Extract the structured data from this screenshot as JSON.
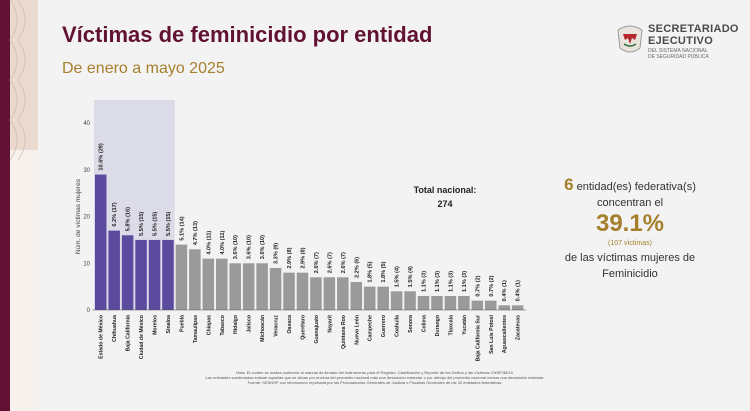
{
  "header": {
    "title": "Víctimas de feminicidio por entidad",
    "subtitle": "De enero a mayo 2025"
  },
  "logo": {
    "line1": "SECRETARIADO",
    "line2": "EJECUTIVO",
    "line3": "DEL SISTEMA NACIONAL",
    "line4": "DE SEGURIDAD PÚBLICA"
  },
  "total": {
    "label": "Total nacional:",
    "value": "274"
  },
  "summary": {
    "count": "6",
    "line1": "entidad(es) federativa(s)",
    "line2": "concentran el",
    "percent": "39.1%",
    "victims": "(107 víctimas)",
    "line3": "de las víctimas mujeres de",
    "line4": "Feminicidio"
  },
  "notes": {
    "line1": "Nota: El conteo se realiza conforme al manual de llenado del Instrumento para el Registro, Clasificación y Reporte de los Delitos y las Víctimas CNSP/38/15.",
    "line2": "Las entidades sombreadas indican aquellas que se sitúan por encima del promedio nacional más una desviación estándar o por debajo del promedio nacional menos una desviación estándar.",
    "line3": "Fuente: SESNSP con información reportada por las Procuradurías Generales de Justicia o Fiscalías Generales de las 32 entidades federativas."
  },
  "colors": {
    "highlight": "#5b4a9e",
    "normal": "#9a9a9a",
    "highlight_band": "#dcdbe8",
    "title": "#611232",
    "accent": "#a57f2c"
  },
  "chart_data": {
    "type": "bar",
    "ylabel": "Núm. de víctimas mujeres",
    "ylim": [
      0,
      40
    ],
    "yticks": [
      0,
      10,
      20,
      30,
      40
    ],
    "grid": false,
    "categories": [
      "Estado de México",
      "Chihuahua",
      "Baja California",
      "Ciudad de México",
      "Morelos",
      "Sinaloa",
      "Puebla",
      "Tamaulipas",
      "Chiapas",
      "Tabasco",
      "Hidalgo",
      "Jalisco",
      "Michoacán",
      "Veracruz",
      "Oaxaca",
      "Querétaro",
      "Guanajuato",
      "Nayarit",
      "Quintana Roo",
      "Nuevo León",
      "Campeche",
      "Guerrero",
      "Coahuila",
      "Sonora",
      "Colima",
      "Durango",
      "Tlaxcala",
      "Yucatán",
      "Baja California Sur",
      "San Luis Potosí",
      "Aguascalientes",
      "Zacatecas"
    ],
    "values": [
      29,
      17,
      16,
      15,
      15,
      15,
      14,
      13,
      11,
      11,
      10,
      10,
      10,
      9,
      8,
      8,
      7,
      7,
      7,
      6,
      5,
      5,
      4,
      4,
      3,
      3,
      3,
      3,
      2,
      2,
      1,
      1
    ],
    "labels": [
      "10.6% (29)",
      "6.2% (17)",
      "5.8% (16)",
      "5.5% (15)",
      "5.5% (15)",
      "5.5% (15)",
      "5.1% (14)",
      "4.7% (13)",
      "4.0% (11)",
      "4.0% (11)",
      "3.6% (10)",
      "3.6% (10)",
      "3.6% (10)",
      "3.3% (9)",
      "2.9% (8)",
      "2.9% (8)",
      "2.6% (7)",
      "2.6% (7)",
      "2.6% (7)",
      "2.2% (6)",
      "1.8% (5)",
      "1.8% (5)",
      "1.5% (4)",
      "1.5% (4)",
      "1.1% (3)",
      "1.1% (3)",
      "1.1% (3)",
      "1.1% (3)",
      "0.7% (2)",
      "0.7% (2)",
      "0.4% (1)",
      "0.4% (1)"
    ],
    "highlighted_count": 6
  }
}
